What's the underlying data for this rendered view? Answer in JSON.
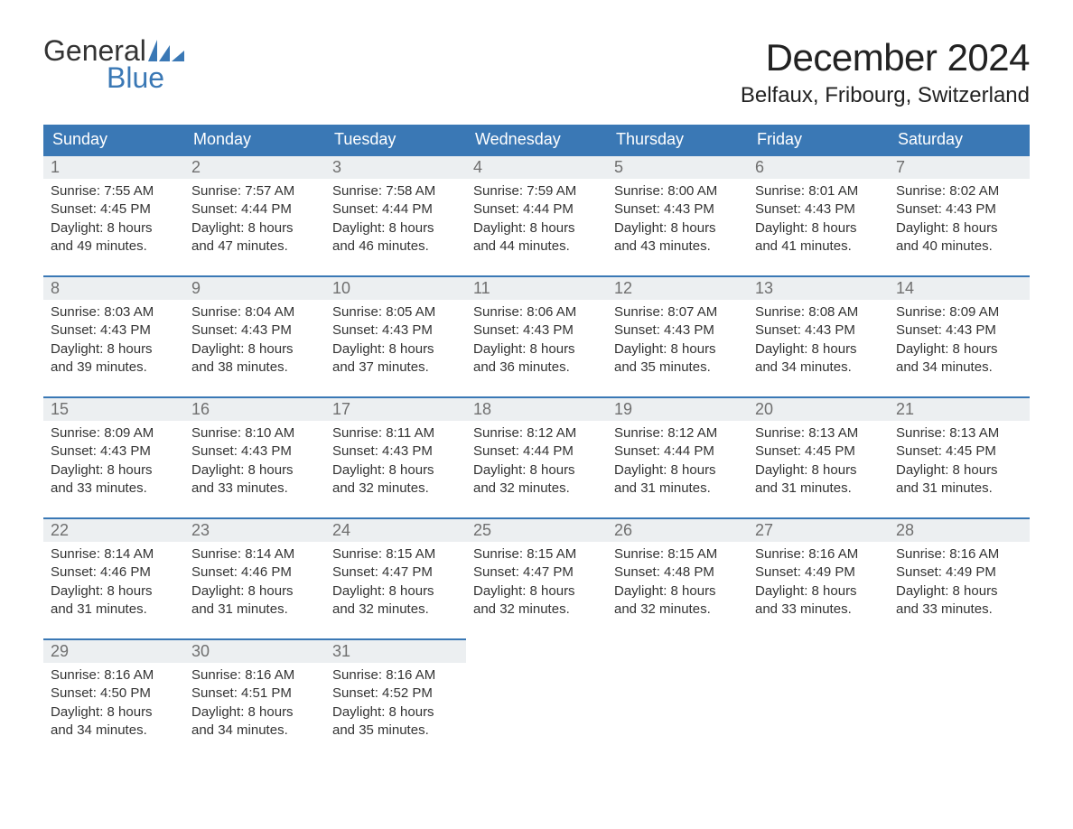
{
  "logo": {
    "word1": "General",
    "word2": "Blue"
  },
  "title": "December 2024",
  "location": "Belfaux, Fribourg, Switzerland",
  "colors": {
    "header_bg": "#3a78b5",
    "header_text": "#ffffff",
    "daynum_bg": "#eceff1",
    "daynum_text": "#6f6f6f",
    "border": "#3a78b5",
    "body_text": "#333333",
    "logo_blue": "#3a78b5"
  },
  "typography": {
    "title_fontsize": 42,
    "location_fontsize": 24,
    "header_fontsize": 18,
    "daynum_fontsize": 18,
    "cell_fontsize": 15,
    "font_family": "Segoe UI"
  },
  "day_headers": [
    "Sunday",
    "Monday",
    "Tuesday",
    "Wednesday",
    "Thursday",
    "Friday",
    "Saturday"
  ],
  "weeks": [
    [
      {
        "day": "1",
        "sunrise": "Sunrise: 7:55 AM",
        "sunset": "Sunset: 4:45 PM",
        "daylight1": "Daylight: 8 hours",
        "daylight2": "and 49 minutes."
      },
      {
        "day": "2",
        "sunrise": "Sunrise: 7:57 AM",
        "sunset": "Sunset: 4:44 PM",
        "daylight1": "Daylight: 8 hours",
        "daylight2": "and 47 minutes."
      },
      {
        "day": "3",
        "sunrise": "Sunrise: 7:58 AM",
        "sunset": "Sunset: 4:44 PM",
        "daylight1": "Daylight: 8 hours",
        "daylight2": "and 46 minutes."
      },
      {
        "day": "4",
        "sunrise": "Sunrise: 7:59 AM",
        "sunset": "Sunset: 4:44 PM",
        "daylight1": "Daylight: 8 hours",
        "daylight2": "and 44 minutes."
      },
      {
        "day": "5",
        "sunrise": "Sunrise: 8:00 AM",
        "sunset": "Sunset: 4:43 PM",
        "daylight1": "Daylight: 8 hours",
        "daylight2": "and 43 minutes."
      },
      {
        "day": "6",
        "sunrise": "Sunrise: 8:01 AM",
        "sunset": "Sunset: 4:43 PM",
        "daylight1": "Daylight: 8 hours",
        "daylight2": "and 41 minutes."
      },
      {
        "day": "7",
        "sunrise": "Sunrise: 8:02 AM",
        "sunset": "Sunset: 4:43 PM",
        "daylight1": "Daylight: 8 hours",
        "daylight2": "and 40 minutes."
      }
    ],
    [
      {
        "day": "8",
        "sunrise": "Sunrise: 8:03 AM",
        "sunset": "Sunset: 4:43 PM",
        "daylight1": "Daylight: 8 hours",
        "daylight2": "and 39 minutes."
      },
      {
        "day": "9",
        "sunrise": "Sunrise: 8:04 AM",
        "sunset": "Sunset: 4:43 PM",
        "daylight1": "Daylight: 8 hours",
        "daylight2": "and 38 minutes."
      },
      {
        "day": "10",
        "sunrise": "Sunrise: 8:05 AM",
        "sunset": "Sunset: 4:43 PM",
        "daylight1": "Daylight: 8 hours",
        "daylight2": "and 37 minutes."
      },
      {
        "day": "11",
        "sunrise": "Sunrise: 8:06 AM",
        "sunset": "Sunset: 4:43 PM",
        "daylight1": "Daylight: 8 hours",
        "daylight2": "and 36 minutes."
      },
      {
        "day": "12",
        "sunrise": "Sunrise: 8:07 AM",
        "sunset": "Sunset: 4:43 PM",
        "daylight1": "Daylight: 8 hours",
        "daylight2": "and 35 minutes."
      },
      {
        "day": "13",
        "sunrise": "Sunrise: 8:08 AM",
        "sunset": "Sunset: 4:43 PM",
        "daylight1": "Daylight: 8 hours",
        "daylight2": "and 34 minutes."
      },
      {
        "day": "14",
        "sunrise": "Sunrise: 8:09 AM",
        "sunset": "Sunset: 4:43 PM",
        "daylight1": "Daylight: 8 hours",
        "daylight2": "and 34 minutes."
      }
    ],
    [
      {
        "day": "15",
        "sunrise": "Sunrise: 8:09 AM",
        "sunset": "Sunset: 4:43 PM",
        "daylight1": "Daylight: 8 hours",
        "daylight2": "and 33 minutes."
      },
      {
        "day": "16",
        "sunrise": "Sunrise: 8:10 AM",
        "sunset": "Sunset: 4:43 PM",
        "daylight1": "Daylight: 8 hours",
        "daylight2": "and 33 minutes."
      },
      {
        "day": "17",
        "sunrise": "Sunrise: 8:11 AM",
        "sunset": "Sunset: 4:43 PM",
        "daylight1": "Daylight: 8 hours",
        "daylight2": "and 32 minutes."
      },
      {
        "day": "18",
        "sunrise": "Sunrise: 8:12 AM",
        "sunset": "Sunset: 4:44 PM",
        "daylight1": "Daylight: 8 hours",
        "daylight2": "and 32 minutes."
      },
      {
        "day": "19",
        "sunrise": "Sunrise: 8:12 AM",
        "sunset": "Sunset: 4:44 PM",
        "daylight1": "Daylight: 8 hours",
        "daylight2": "and 31 minutes."
      },
      {
        "day": "20",
        "sunrise": "Sunrise: 8:13 AM",
        "sunset": "Sunset: 4:45 PM",
        "daylight1": "Daylight: 8 hours",
        "daylight2": "and 31 minutes."
      },
      {
        "day": "21",
        "sunrise": "Sunrise: 8:13 AM",
        "sunset": "Sunset: 4:45 PM",
        "daylight1": "Daylight: 8 hours",
        "daylight2": "and 31 minutes."
      }
    ],
    [
      {
        "day": "22",
        "sunrise": "Sunrise: 8:14 AM",
        "sunset": "Sunset: 4:46 PM",
        "daylight1": "Daylight: 8 hours",
        "daylight2": "and 31 minutes."
      },
      {
        "day": "23",
        "sunrise": "Sunrise: 8:14 AM",
        "sunset": "Sunset: 4:46 PM",
        "daylight1": "Daylight: 8 hours",
        "daylight2": "and 31 minutes."
      },
      {
        "day": "24",
        "sunrise": "Sunrise: 8:15 AM",
        "sunset": "Sunset: 4:47 PM",
        "daylight1": "Daylight: 8 hours",
        "daylight2": "and 32 minutes."
      },
      {
        "day": "25",
        "sunrise": "Sunrise: 8:15 AM",
        "sunset": "Sunset: 4:47 PM",
        "daylight1": "Daylight: 8 hours",
        "daylight2": "and 32 minutes."
      },
      {
        "day": "26",
        "sunrise": "Sunrise: 8:15 AM",
        "sunset": "Sunset: 4:48 PM",
        "daylight1": "Daylight: 8 hours",
        "daylight2": "and 32 minutes."
      },
      {
        "day": "27",
        "sunrise": "Sunrise: 8:16 AM",
        "sunset": "Sunset: 4:49 PM",
        "daylight1": "Daylight: 8 hours",
        "daylight2": "and 33 minutes."
      },
      {
        "day": "28",
        "sunrise": "Sunrise: 8:16 AM",
        "sunset": "Sunset: 4:49 PM",
        "daylight1": "Daylight: 8 hours",
        "daylight2": "and 33 minutes."
      }
    ],
    [
      {
        "day": "29",
        "sunrise": "Sunrise: 8:16 AM",
        "sunset": "Sunset: 4:50 PM",
        "daylight1": "Daylight: 8 hours",
        "daylight2": "and 34 minutes."
      },
      {
        "day": "30",
        "sunrise": "Sunrise: 8:16 AM",
        "sunset": "Sunset: 4:51 PM",
        "daylight1": "Daylight: 8 hours",
        "daylight2": "and 34 minutes."
      },
      {
        "day": "31",
        "sunrise": "Sunrise: 8:16 AM",
        "sunset": "Sunset: 4:52 PM",
        "daylight1": "Daylight: 8 hours",
        "daylight2": "and 35 minutes."
      },
      null,
      null,
      null,
      null
    ]
  ]
}
